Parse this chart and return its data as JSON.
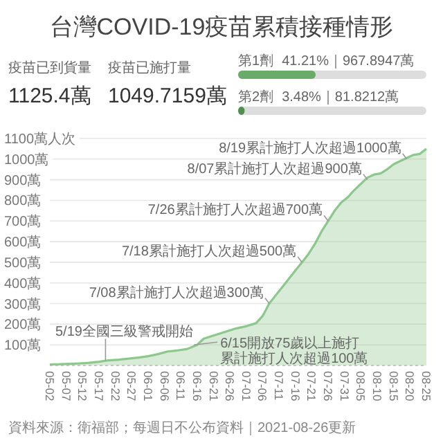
{
  "chart_data": [
    {
      "type": "other",
      "title": "台灣COVID-19疫苗累積接種情形",
      "annotations": [
        "疫苗已到貨量",
        "1125.4萬",
        "疫苗已施打量",
        "1049.7159萬"
      ]
    },
    {
      "type": "bar",
      "orientation": "horizontal",
      "categories": [
        "第1劑",
        "第2劑"
      ],
      "values": [
        41.21,
        3.48
      ],
      "value_labels": [
        "41.21%｜967.8947萬",
        "3.48%｜81.8212萬"
      ],
      "colors": [
        "#6aaa6a",
        "#4f8f4f"
      ],
      "xlim": [
        0,
        100
      ]
    },
    {
      "type": "area",
      "grid": "y",
      "ylim": [
        0,
        1100
      ],
      "yticks": [
        {
          "value": 100,
          "label": "100萬"
        },
        {
          "value": 200,
          "label": "200萬"
        },
        {
          "value": 300,
          "label": "300萬"
        },
        {
          "value": 400,
          "label": "400萬"
        },
        {
          "value": 500,
          "label": "500萬"
        },
        {
          "value": 600,
          "label": "600萬"
        },
        {
          "value": 700,
          "label": "700萬"
        },
        {
          "value": 800,
          "label": "800萬"
        },
        {
          "value": 900,
          "label": "900萬"
        },
        {
          "value": 1000,
          "label": "1000萬"
        },
        {
          "value": 1100,
          "label": "1100萬人次"
        }
      ],
      "xlim": [
        "2021-05-02",
        "2021-08-25"
      ],
      "xticks": [
        {
          "value": "2021-05-02",
          "label": "05-02"
        },
        {
          "value": "2021-05-07",
          "label": "05-07"
        },
        {
          "value": "2021-05-12",
          "label": "05-12"
        },
        {
          "value": "2021-05-17",
          "label": "05-17"
        },
        {
          "value": "2021-05-22",
          "label": "05-22"
        },
        {
          "value": "2021-05-27",
          "label": "05-27"
        },
        {
          "value": "2021-06-01",
          "label": "06-01"
        },
        {
          "value": "2021-06-06",
          "label": "06-06"
        },
        {
          "value": "2021-06-11",
          "label": "06-11"
        },
        {
          "value": "2021-06-16",
          "label": "06-16"
        },
        {
          "value": "2021-06-21",
          "label": "06-21"
        },
        {
          "value": "2021-06-26",
          "label": "06-26"
        },
        {
          "value": "2021-07-01",
          "label": "07-01"
        },
        {
          "value": "2021-07-06",
          "label": "07-06"
        },
        {
          "value": "2021-07-11",
          "label": "07-11"
        },
        {
          "value": "2021-07-16",
          "label": "07-16"
        },
        {
          "value": "2021-07-21",
          "label": "07-21"
        },
        {
          "value": "2021-07-26",
          "label": "07-26"
        },
        {
          "value": "2021-07-31",
          "label": "07-31"
        },
        {
          "value": "2021-08-05",
          "label": "08-05"
        },
        {
          "value": "2021-08-10",
          "label": "08-10"
        },
        {
          "value": "2021-08-15",
          "label": "08-15"
        },
        {
          "value": "2021-08-20",
          "label": "08-20"
        },
        {
          "value": "2021-08-25",
          "label": "08-25"
        }
      ],
      "x": [
        "2021-05-02",
        "2021-05-05",
        "2021-05-08",
        "2021-05-11",
        "2021-05-14",
        "2021-05-17",
        "2021-05-20",
        "2021-05-23",
        "2021-05-26",
        "2021-05-29",
        "2021-06-01",
        "2021-06-04",
        "2021-06-07",
        "2021-06-10",
        "2021-06-13",
        "2021-06-16",
        "2021-06-18",
        "2021-06-20",
        "2021-06-22",
        "2021-06-25",
        "2021-06-28",
        "2021-07-01",
        "2021-07-04",
        "2021-07-06",
        "2021-07-08",
        "2021-07-10",
        "2021-07-13",
        "2021-07-16",
        "2021-07-18",
        "2021-07-20",
        "2021-07-22",
        "2021-07-24",
        "2021-07-26",
        "2021-07-28",
        "2021-07-30",
        "2021-08-01",
        "2021-08-03",
        "2021-08-05",
        "2021-08-07",
        "2021-08-09",
        "2021-08-11",
        "2021-08-13",
        "2021-08-15",
        "2021-08-17",
        "2021-08-19",
        "2021-08-21",
        "2021-08-23",
        "2021-08-25"
      ],
      "series": [
        {
          "color": "#8cc78c",
          "values": [
            5,
            6,
            8,
            10,
            13,
            18,
            25,
            28,
            33,
            38,
            45,
            55,
            68,
            73,
            80,
            100,
            130,
            140,
            150,
            165,
            180,
            190,
            205,
            240,
            300,
            340,
            400,
            460,
            500,
            540,
            590,
            650,
            700,
            750,
            790,
            815,
            850,
            880,
            910,
            925,
            930,
            950,
            975,
            990,
            1005,
            1020,
            1025,
            1050
          ]
        }
      ],
      "annotations": [
        {
          "text": "8/19累計施打人次超過1000萬",
          "x": "2021-08-19",
          "y": 1000
        },
        {
          "text": "8/07累計施打人次超過900萬",
          "x": "2021-08-07",
          "y": 900
        },
        {
          "text": "7/26累計施打人次超過700萬",
          "x": "2021-07-26",
          "y": 700
        },
        {
          "text": "7/18累計施打人次超過500萬",
          "x": "2021-07-18",
          "y": 500
        },
        {
          "text": "7/08累計施打人次超過300萬",
          "x": "2021-07-08",
          "y": 300
        },
        {
          "text": "6/15開放75歲以上施打",
          "x": "2021-06-15",
          "y": 100
        },
        {
          "text": "累計施打人次超過100萬",
          "x": "2021-06-15",
          "y": 100
        },
        {
          "text": "5/19全國三級警戒開始",
          "x": "2021-05-19",
          "y": 22
        },
        "資料來源：衛福部；每週日不公布資料｜2021-08-26更新"
      ]
    }
  ]
}
